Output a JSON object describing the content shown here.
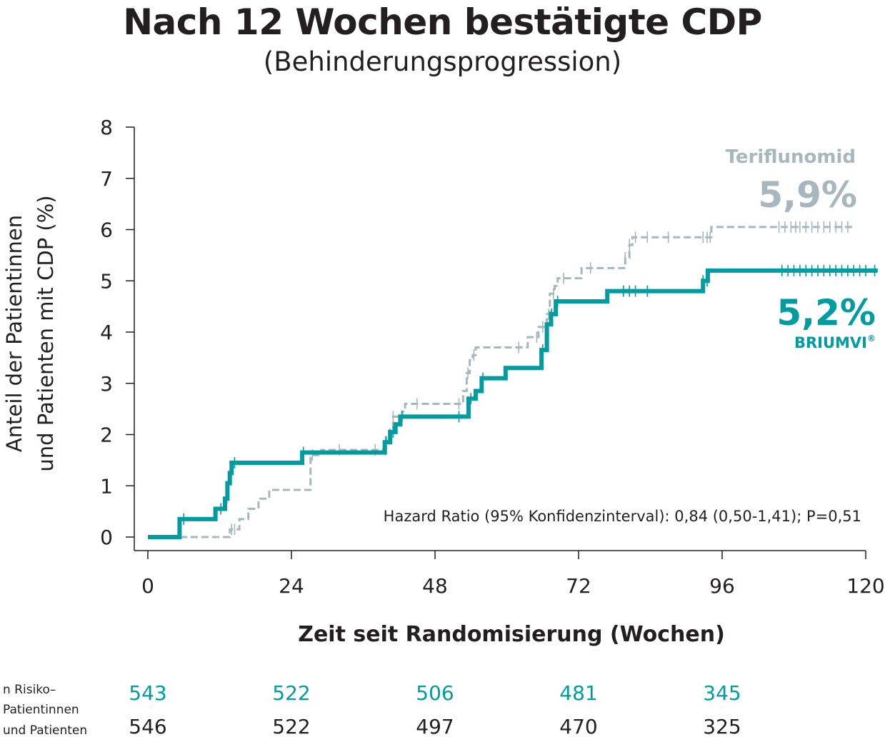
{
  "title": "Nach 12 Wochen bestätigte CDP",
  "subtitle": "(Behinderungsprogression)",
  "chart_data": {
    "type": "line",
    "subtype": "kaplan-meier-step",
    "xlabel": "Zeit seit Randomisierung (Wochen)",
    "ylabel_line1": "Anteil der Patientinnen",
    "ylabel_line2": "und Patienten mit CDP (%)",
    "xlim": [
      0,
      120
    ],
    "ylim": [
      0,
      8
    ],
    "x_ticks": [
      0,
      24,
      48,
      72,
      96,
      120
    ],
    "y_ticks": [
      0,
      1,
      2,
      3,
      4,
      5,
      6,
      7,
      8
    ],
    "grid": false,
    "series": [
      {
        "name": "Teriflunomid",
        "final_label": "5,9%",
        "color": "#a7b7be",
        "dashed": true,
        "steps": [
          [
            0,
            0
          ],
          [
            13,
            0
          ],
          [
            13.7,
            0.15
          ],
          [
            15.3,
            0.35
          ],
          [
            16.8,
            0.55
          ],
          [
            18.5,
            0.75
          ],
          [
            20.3,
            0.92
          ],
          [
            27,
            0.92
          ],
          [
            27.2,
            1.6
          ],
          [
            29,
            1.7
          ],
          [
            39.6,
            1.7
          ],
          [
            39.8,
            1.95
          ],
          [
            40.5,
            2.1
          ],
          [
            41,
            2.35
          ],
          [
            42.5,
            2.45
          ],
          [
            43,
            2.6
          ],
          [
            52.5,
            2.6
          ],
          [
            52.7,
            2.85
          ],
          [
            53.3,
            3.2
          ],
          [
            53.8,
            3.45
          ],
          [
            54.3,
            3.55
          ],
          [
            54.8,
            3.7
          ],
          [
            63,
            3.7
          ],
          [
            63.5,
            3.9
          ],
          [
            65.3,
            4.1
          ],
          [
            66.7,
            4.35
          ],
          [
            67.2,
            4.75
          ],
          [
            68,
            4.9
          ],
          [
            68.5,
            5.05
          ],
          [
            72,
            5.05
          ],
          [
            72.5,
            5.25
          ],
          [
            79.5,
            5.25
          ],
          [
            79.8,
            5.45
          ],
          [
            80.5,
            5.7
          ],
          [
            81,
            5.85
          ],
          [
            93.7,
            5.85
          ],
          [
            94.2,
            6.05
          ],
          [
            118,
            6.05
          ]
        ],
        "censor_x": [
          14,
          14.5,
          27.5,
          32,
          38,
          39.7,
          41,
          45,
          52,
          53.5,
          54.5,
          62,
          65,
          66,
          67,
          67.8,
          69.5,
          74,
          79.8,
          80.5,
          81.5,
          83.5,
          87,
          92.8,
          93.5,
          94,
          105.5,
          106.5,
          107.5,
          108.3,
          109,
          110,
          111,
          112,
          113,
          114,
          115,
          116,
          117
        ]
      },
      {
        "name": "BRIUMVI",
        "name_suffix": "®",
        "final_label": "5,2%",
        "color": "#009c9f",
        "dashed": false,
        "steps": [
          [
            0,
            0
          ],
          [
            5,
            0
          ],
          [
            5.3,
            0.35
          ],
          [
            11,
            0.35
          ],
          [
            11.3,
            0.55
          ],
          [
            12.6,
            0.55
          ],
          [
            12.9,
            0.75
          ],
          [
            13.3,
            1.05
          ],
          [
            13.7,
            1.25
          ],
          [
            14,
            1.45
          ],
          [
            25.5,
            1.45
          ],
          [
            25.8,
            1.65
          ],
          [
            39.3,
            1.65
          ],
          [
            39.6,
            1.85
          ],
          [
            40.5,
            2.05
          ],
          [
            41.4,
            2.2
          ],
          [
            42.2,
            2.35
          ],
          [
            53.3,
            2.35
          ],
          [
            53.6,
            2.7
          ],
          [
            54.8,
            2.85
          ],
          [
            55.8,
            3.1
          ],
          [
            59.5,
            3.1
          ],
          [
            59.8,
            3.3
          ],
          [
            65.5,
            3.3
          ],
          [
            65.8,
            3.65
          ],
          [
            66.7,
            4.15
          ],
          [
            67.4,
            4.35
          ],
          [
            68.2,
            4.6
          ],
          [
            76.5,
            4.6
          ],
          [
            76.8,
            4.8
          ],
          [
            92.5,
            4.8
          ],
          [
            92.8,
            5.0
          ],
          [
            93.6,
            5.2
          ],
          [
            122,
            5.2
          ]
        ],
        "censor_x": [
          6,
          12.2,
          13.2,
          14.5,
          26,
          39.8,
          41,
          42.5,
          52,
          54,
          56,
          66,
          67.5,
          68.5,
          79.5,
          80.5,
          81.5,
          83.5,
          92.8,
          93.5,
          106,
          107,
          108,
          109,
          110,
          111,
          112,
          113,
          114,
          115,
          116,
          117,
          118,
          119,
          120,
          121.5
        ]
      }
    ],
    "annotation": "Hazard Ratio (95% Konfidenzinterval): 0,84 (0,50-1,41); P=0,51",
    "risk_table": {
      "header": [
        "n Risiko–",
        "Patientinnen",
        "und Patienten"
      ],
      "times": [
        0,
        24,
        48,
        72,
        96
      ],
      "briumvi": [
        "543",
        "522",
        "506",
        "481",
        "345"
      ],
      "teriflunomid": [
        "546",
        "522",
        "497",
        "470",
        "325"
      ]
    }
  },
  "colors": {
    "briumvi": "#009c9f",
    "teriflunomid": "#a7b7be",
    "text": "#231f20"
  }
}
